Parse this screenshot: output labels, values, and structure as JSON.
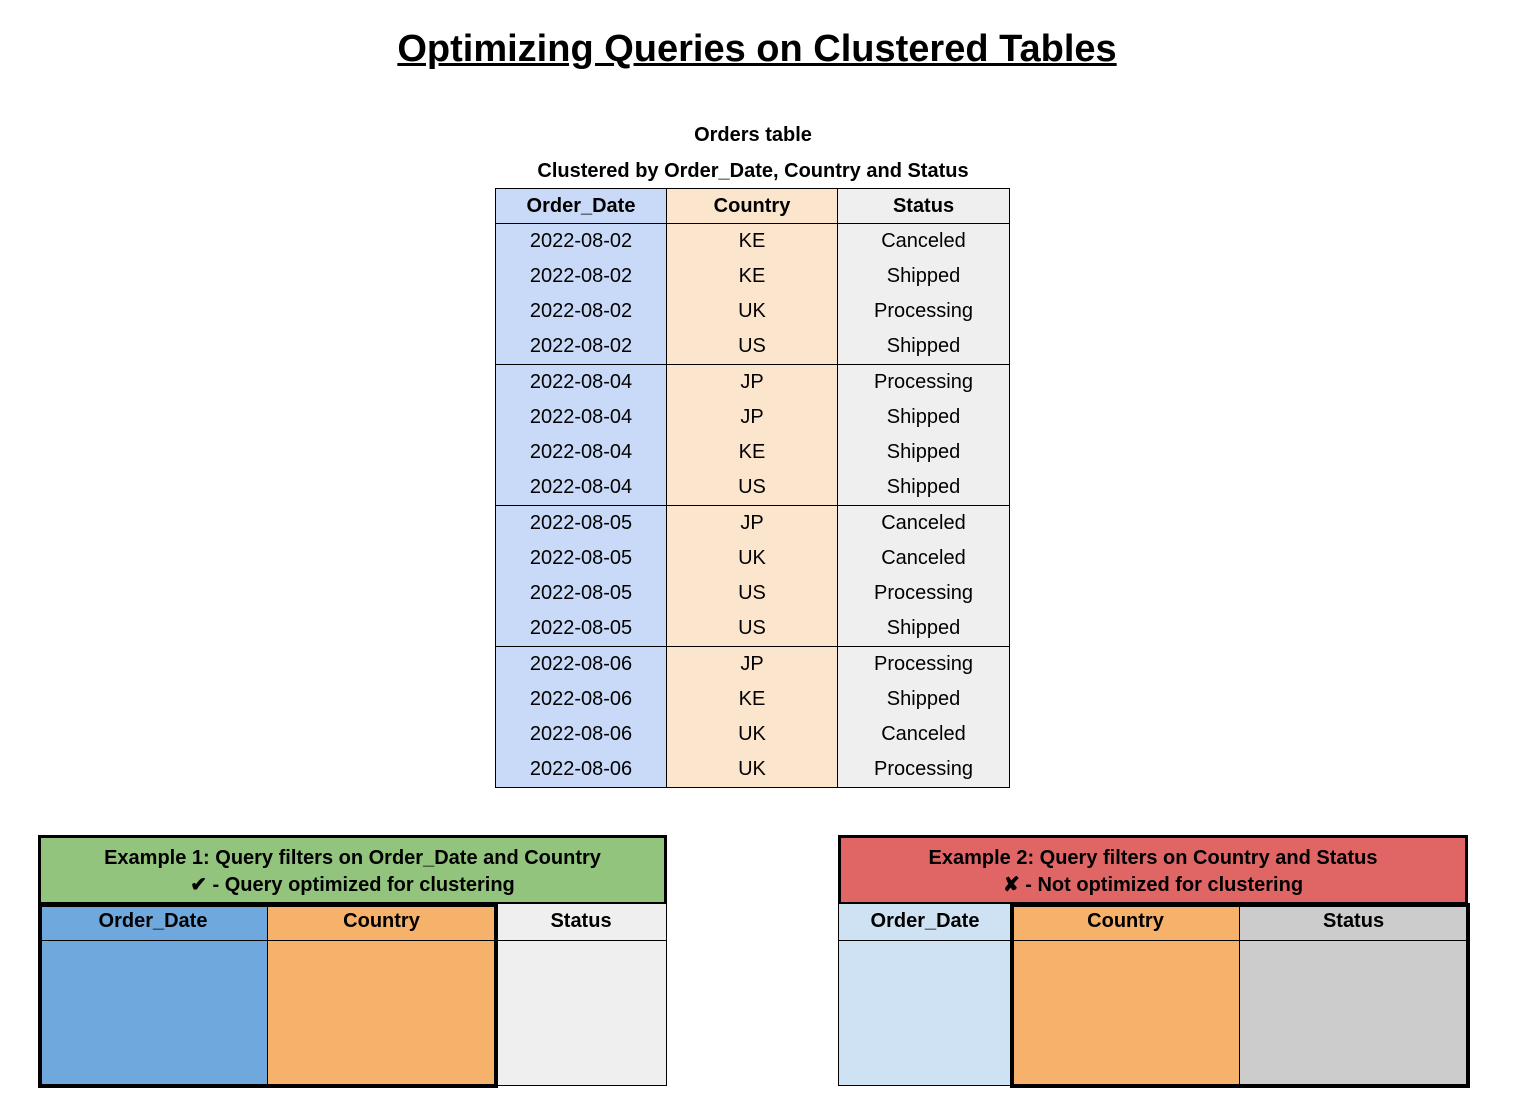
{
  "title": "Optimizing Queries on Clustered Tables",
  "orders_table": {
    "caption": "Orders table",
    "subcaption": "Clustered by Order_Date, Country and Status",
    "columns": [
      "Order_Date",
      "Country",
      "Status"
    ],
    "rows": [
      [
        "2022-08-02",
        "KE",
        "Canceled"
      ],
      [
        "2022-08-02",
        "KE",
        "Shipped"
      ],
      [
        "2022-08-02",
        "UK",
        "Processing"
      ],
      [
        "2022-08-02",
        "US",
        "Shipped"
      ],
      [
        "2022-08-04",
        "JP",
        "Processing"
      ],
      [
        "2022-08-04",
        "JP",
        "Shipped"
      ],
      [
        "2022-08-04",
        "KE",
        "Shipped"
      ],
      [
        "2022-08-04",
        "US",
        "Shipped"
      ],
      [
        "2022-08-05",
        "JP",
        "Canceled"
      ],
      [
        "2022-08-05",
        "UK",
        "Canceled"
      ],
      [
        "2022-08-05",
        "US",
        "Processing"
      ],
      [
        "2022-08-05",
        "US",
        "Shipped"
      ],
      [
        "2022-08-06",
        "JP",
        "Processing"
      ],
      [
        "2022-08-06",
        "KE",
        "Shipped"
      ],
      [
        "2022-08-06",
        "UK",
        "Canceled"
      ],
      [
        "2022-08-06",
        "UK",
        "Processing"
      ]
    ],
    "colors": {
      "Order_Date": "#c9daf8",
      "Country": "#fce5cd",
      "Status": "#efefef"
    }
  },
  "example1": {
    "title": "Example 1: Query filters on Order_Date and Country",
    "result": "✔ - Query optimized for clustering",
    "columns": [
      "Order_Date",
      "Country",
      "Status"
    ],
    "highlighted_columns": [
      "Order_Date",
      "Country"
    ],
    "colors": {
      "header": "#93c47d",
      "Order_Date": "#6fa8dc",
      "Country": "#f6b26b",
      "Status": "#efefef"
    }
  },
  "example2": {
    "title": "Example 2: Query filters on Country and Status",
    "result": "✘ - Not optimized for clustering",
    "columns": [
      "Order_Date",
      "Country",
      "Status"
    ],
    "highlighted_columns": [
      "Country",
      "Status"
    ],
    "colors": {
      "header": "#e06666",
      "Order_Date": "#cfe2f3",
      "Country": "#f6b26b",
      "Status": "#cccccc"
    }
  }
}
